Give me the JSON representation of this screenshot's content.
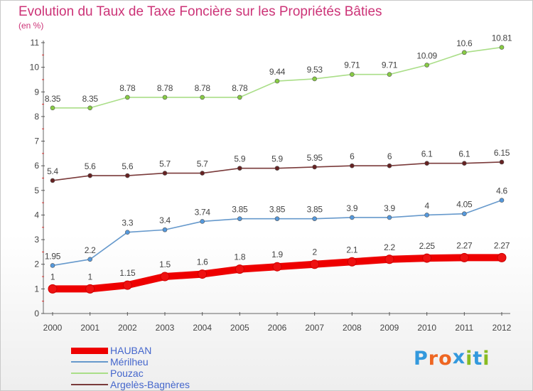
{
  "title": "Evolution du Taux de Taxe Foncière sur les Propriétés Bâties",
  "unit_label": "(en %)",
  "logo": {
    "text": "Proxiti",
    "letters": [
      "P",
      "r",
      "o",
      "x",
      "i",
      "t",
      "i"
    ],
    "letter_colors": [
      "#3399dd",
      "#ee6622",
      "#ee6622",
      "#3399dd",
      "#88bb22",
      "#3399dd",
      "#88bb22"
    ]
  },
  "chart_data": {
    "type": "line",
    "x": [
      "2000",
      "2001",
      "2002",
      "2003",
      "2004",
      "2005",
      "2006",
      "2007",
      "2008",
      "2009",
      "2010",
      "2011",
      "2012"
    ],
    "ylim": [
      0,
      11
    ],
    "yticks": [
      "0",
      "1",
      "2",
      "3",
      "4",
      "5",
      "6",
      "7",
      "8",
      "9",
      "10",
      "11"
    ],
    "grid": false,
    "legend_position": "bottom-left",
    "series": [
      {
        "name": "HAUBAN",
        "color": "#ee0000",
        "marker_color": "#ee1111",
        "values": [
          1,
          1,
          1.15,
          1.5,
          1.6,
          1.8,
          1.9,
          2,
          2.1,
          2.2,
          2.25,
          2.27,
          2.27
        ],
        "labels": [
          "1",
          "1",
          "1.15",
          "1.5",
          "1.6",
          "1.8",
          "1.9",
          "2",
          "2.1",
          "2.2",
          "2.25",
          "2.27",
          "2.27"
        ]
      },
      {
        "name": "Mérilheu",
        "color": "#6699cc",
        "marker_color": "#5599dd",
        "values": [
          1.95,
          2.2,
          3.3,
          3.4,
          3.74,
          3.85,
          3.85,
          3.85,
          3.9,
          3.9,
          4,
          4.05,
          4.6
        ],
        "labels": [
          "1.95",
          "2.2",
          "3.3",
          "3.4",
          "3.74",
          "3.85",
          "3.85",
          "3.85",
          "3.9",
          "3.9",
          "4",
          "4.05",
          "4.6"
        ]
      },
      {
        "name": "Pouzac",
        "color": "#aade88",
        "marker_color": "#88cc44",
        "values": [
          8.35,
          8.35,
          8.78,
          8.78,
          8.78,
          8.78,
          9.44,
          9.53,
          9.71,
          9.71,
          10.09,
          10.6,
          10.81
        ],
        "labels": [
          "8.35",
          "8.35",
          "8.78",
          "8.78",
          "8.78",
          "8.78",
          "9.44",
          "9.53",
          "9.71",
          "9.71",
          "10.09",
          "10.6",
          "10.81"
        ]
      },
      {
        "name": "Argelès-Bagnères",
        "color": "#7a3a3a",
        "marker_color": "#662222",
        "values": [
          5.4,
          5.6,
          5.6,
          5.7,
          5.7,
          5.9,
          5.9,
          5.95,
          6,
          6,
          6.1,
          6.1,
          6.15
        ],
        "labels": [
          "5.4",
          "5.6",
          "5.6",
          "5.7",
          "5.7",
          "5.9",
          "5.9",
          "5.95",
          "6",
          "6",
          "6.1",
          "6.1",
          "6.15"
        ]
      }
    ]
  }
}
